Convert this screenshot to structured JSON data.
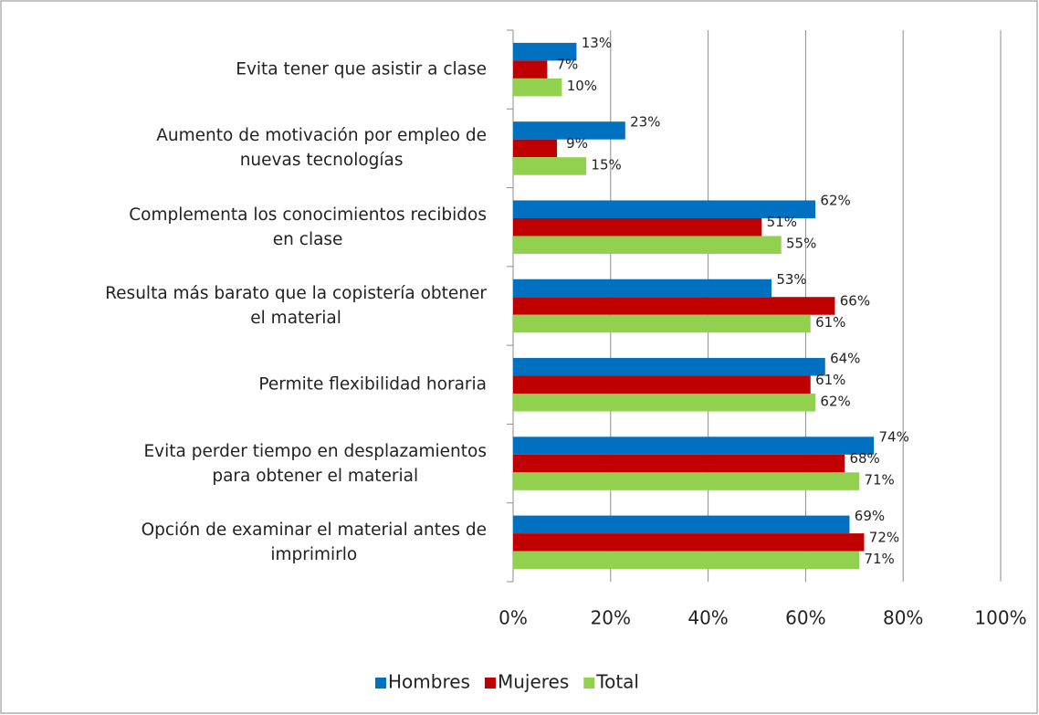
{
  "chart_data": {
    "type": "hbar",
    "categories": [
      "Evita tener que asistir a clase",
      "Aumento de motivación por empleo de\nnuevas tecnologías",
      "Complementa los conocimientos recibidos\nen clase",
      "Resulta más barato que la copistería obtener\nel material",
      "Permite flexibilidad horaria",
      "Evita perder tiempo en desplazamientos\npara obtener el material",
      "Opción de examinar el material antes de\nimprimirlo"
    ],
    "series": [
      {
        "name": "Hombres",
        "color": "#0070c0",
        "values": [
          13,
          23,
          62,
          53,
          64,
          74,
          69
        ],
        "value_labels": [
          "13%",
          "23%",
          "62%",
          "53%",
          "64%",
          "74%",
          "69%"
        ]
      },
      {
        "name": "Mujeres",
        "color": "#c00000",
        "values": [
          7,
          9,
          51,
          66,
          61,
          68,
          72
        ],
        "value_labels": [
          "7%",
          "9%",
          "51%",
          "66%",
          "61%",
          "68%",
          "72%"
        ]
      },
      {
        "name": "Total",
        "color": "#92d050",
        "values": [
          10,
          15,
          55,
          61,
          62,
          71,
          71
        ],
        "value_labels": [
          "10%",
          "15%",
          "55%",
          "61%",
          "62%",
          "71%",
          "71%"
        ]
      }
    ],
    "xlim": [
      0,
      100
    ],
    "xticks": [
      {
        "value": 0,
        "label": "0%"
      },
      {
        "value": 20,
        "label": "20%"
      },
      {
        "value": 40,
        "label": "40%"
      },
      {
        "value": 60,
        "label": "60%"
      },
      {
        "value": 80,
        "label": "80%"
      },
      {
        "value": 100,
        "label": "100%"
      }
    ],
    "grid": true,
    "legend": "bottom"
  }
}
